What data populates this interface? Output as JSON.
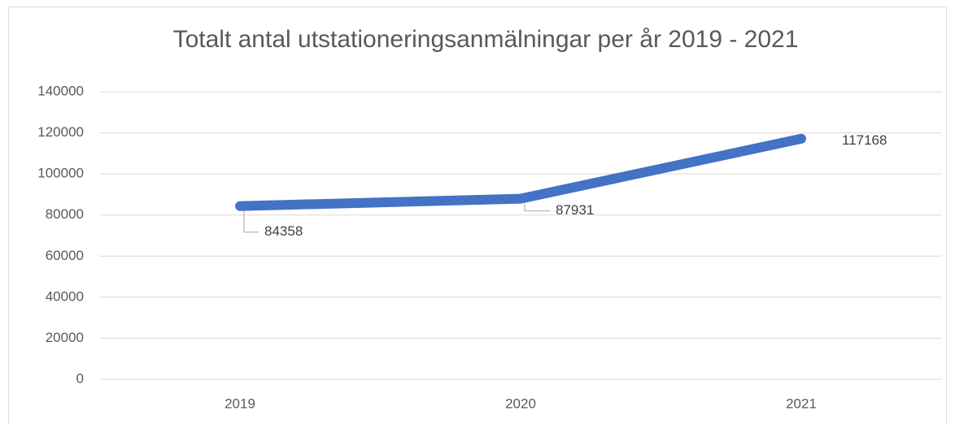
{
  "chart_data": {
    "type": "line",
    "title": "Totalt antal utstationeringsanmälningar per år 2019 - 2021",
    "categories": [
      "2019",
      "2020",
      "2021"
    ],
    "values": [
      84358,
      87931,
      117168
    ],
    "color": "#4472c4",
    "ylim": [
      0,
      140000
    ],
    "yticks": [
      0,
      20000,
      40000,
      60000,
      80000,
      100000,
      120000,
      140000
    ],
    "grid": true
  }
}
